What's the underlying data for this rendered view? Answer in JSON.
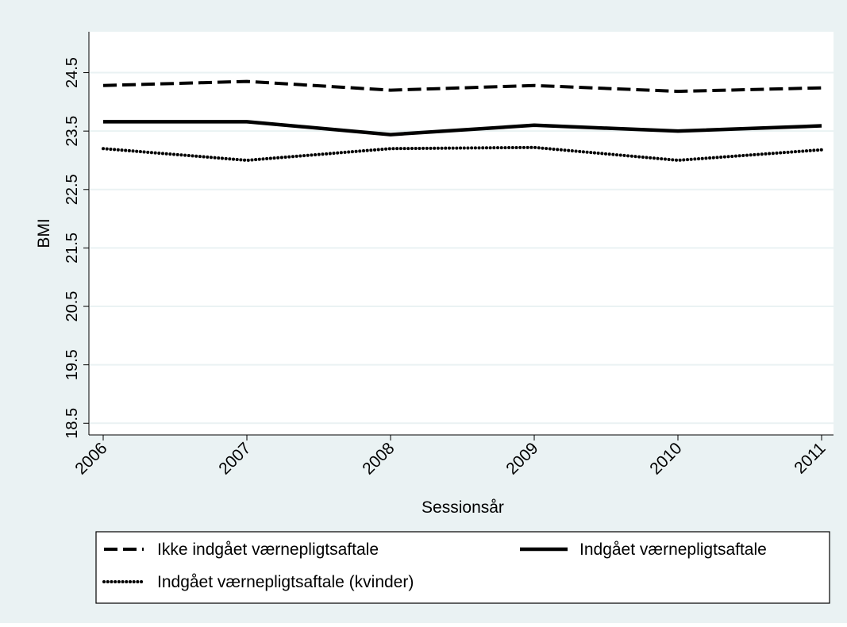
{
  "chart_data": {
    "type": "line",
    "title": "",
    "xlabel": "Sessionsår",
    "ylabel": "BMI",
    "x": [
      "2006",
      "2007",
      "2008",
      "2009",
      "2010",
      "2011"
    ],
    "ylim": [
      18.3,
      25.2
    ],
    "yticks": [
      "18.5",
      "19.5",
      "20.5",
      "21.5",
      "22.5",
      "23.5",
      "24.5"
    ],
    "grid": true,
    "legend_position": "bottom",
    "background_color": "#eaf2f3",
    "plot_background_color": "#ffffff",
    "grid_color": "#eaf2f3",
    "series": [
      {
        "name": "Ikke indgået værnepligtsaftale",
        "style": "dashed",
        "color": "#000000",
        "values": [
          24.28,
          24.35,
          24.2,
          24.28,
          24.18,
          24.24
        ]
      },
      {
        "name": "Indgået værnepligtsaftale",
        "style": "solid",
        "color": "#000000",
        "values": [
          23.66,
          23.66,
          23.44,
          23.6,
          23.5,
          23.59
        ]
      },
      {
        "name": "Indgået værnepligtsaftale (kvinder)",
        "style": "dotted",
        "color": "#000000",
        "values": [
          23.2,
          23.0,
          23.2,
          23.22,
          23.0,
          23.18
        ]
      }
    ]
  }
}
